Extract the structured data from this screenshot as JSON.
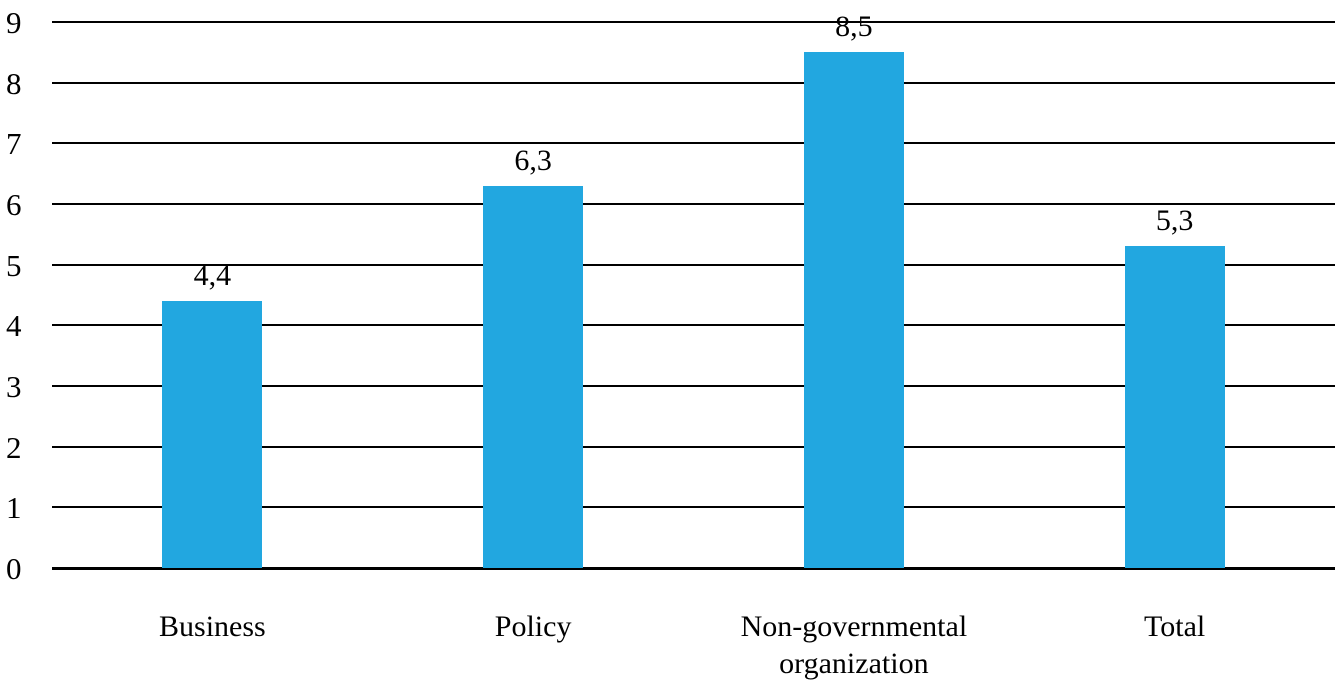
{
  "chart_data": {
    "type": "bar",
    "title": "",
    "xlabel": "",
    "ylabel": "",
    "categories": [
      "Business",
      "Policy",
      "Non-governmental organization",
      "Total"
    ],
    "values": [
      4.4,
      6.3,
      8.5,
      5.3
    ],
    "value_labels": [
      "4,4",
      "6,3",
      "8,5",
      "5,3"
    ],
    "yticks": [
      0,
      1,
      2,
      3,
      4,
      5,
      6,
      7,
      8,
      9
    ],
    "ylim": [
      0,
      9
    ],
    "grid": true,
    "legend": "none",
    "bar_color": "#22A7E0",
    "grid_color": "#000000",
    "text_color": "#000000"
  }
}
